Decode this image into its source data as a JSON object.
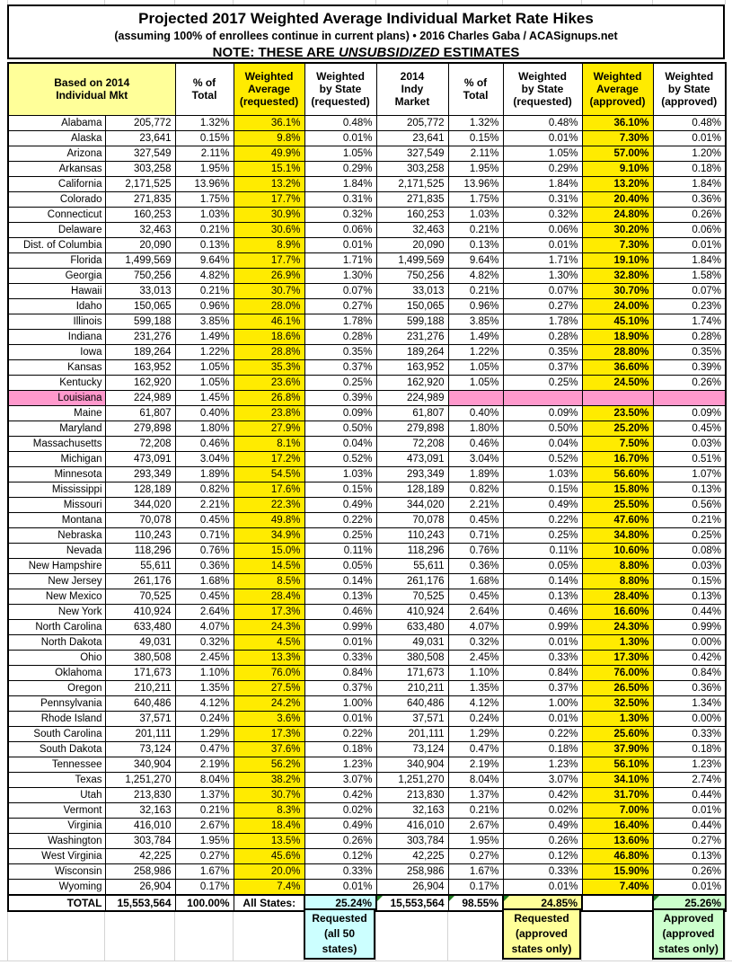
{
  "chart_data": {
    "type": "table",
    "title": "Projected 2017 Weighted Average Individual Market Rate Hikes",
    "subtitle": "(assuming 100% of enrollees continue in current plans) • 2016 Charles Gaba / ACASignups.net",
    "note_prefix": "NOTE: THESE ARE ",
    "note_italic": "UNSUBSIDIZED",
    "note_suffix": " ESTIMATES",
    "columns": [
      "Based on 2014\nIndividual Mkt",
      "% of\nTotal",
      "Weighted\nAverage\n(requested)",
      "Weighted\nby State\n(requested)",
      "2014\nIndy\nMarket",
      "% of\nTotal",
      "Weighted\nby State\n(requested)",
      "Weighted\nAverage\n(approved)",
      "Weighted\nby State\n(approved)"
    ],
    "highlighted_state": "Louisiana",
    "rows": [
      [
        "Alabama",
        "205,772",
        "1.32%",
        "36.1%",
        "0.48%",
        "205,772",
        "1.32%",
        "0.48%",
        "36.10%",
        "0.48%"
      ],
      [
        "Alaska",
        "23,641",
        "0.15%",
        "9.8%",
        "0.01%",
        "23,641",
        "0.15%",
        "0.01%",
        "7.30%",
        "0.01%"
      ],
      [
        "Arizona",
        "327,549",
        "2.11%",
        "49.9%",
        "1.05%",
        "327,549",
        "2.11%",
        "1.05%",
        "57.00%",
        "1.20%"
      ],
      [
        "Arkansas",
        "303,258",
        "1.95%",
        "15.1%",
        "0.29%",
        "303,258",
        "1.95%",
        "0.29%",
        "9.10%",
        "0.18%"
      ],
      [
        "California",
        "2,171,525",
        "13.96%",
        "13.2%",
        "1.84%",
        "2,171,525",
        "13.96%",
        "1.84%",
        "13.20%",
        "1.84%"
      ],
      [
        "Colorado",
        "271,835",
        "1.75%",
        "17.7%",
        "0.31%",
        "271,835",
        "1.75%",
        "0.31%",
        "20.40%",
        "0.36%"
      ],
      [
        "Connecticut",
        "160,253",
        "1.03%",
        "30.9%",
        "0.32%",
        "160,253",
        "1.03%",
        "0.32%",
        "24.80%",
        "0.26%"
      ],
      [
        "Delaware",
        "32,463",
        "0.21%",
        "30.6%",
        "0.06%",
        "32,463",
        "0.21%",
        "0.06%",
        "30.20%",
        "0.06%"
      ],
      [
        "Dist. of Columbia",
        "20,090",
        "0.13%",
        "8.9%",
        "0.01%",
        "20,090",
        "0.13%",
        "0.01%",
        "7.30%",
        "0.01%"
      ],
      [
        "Florida",
        "1,499,569",
        "9.64%",
        "17.7%",
        "1.71%",
        "1,499,569",
        "9.64%",
        "1.71%",
        "19.10%",
        "1.84%"
      ],
      [
        "Georgia",
        "750,256",
        "4.82%",
        "26.9%",
        "1.30%",
        "750,256",
        "4.82%",
        "1.30%",
        "32.80%",
        "1.58%"
      ],
      [
        "Hawaii",
        "33,013",
        "0.21%",
        "30.7%",
        "0.07%",
        "33,013",
        "0.21%",
        "0.07%",
        "30.70%",
        "0.07%"
      ],
      [
        "Idaho",
        "150,065",
        "0.96%",
        "28.0%",
        "0.27%",
        "150,065",
        "0.96%",
        "0.27%",
        "24.00%",
        "0.23%"
      ],
      [
        "Illinois",
        "599,188",
        "3.85%",
        "46.1%",
        "1.78%",
        "599,188",
        "3.85%",
        "1.78%",
        "45.10%",
        "1.74%"
      ],
      [
        "Indiana",
        "231,276",
        "1.49%",
        "18.6%",
        "0.28%",
        "231,276",
        "1.49%",
        "0.28%",
        "18.90%",
        "0.28%"
      ],
      [
        "Iowa",
        "189,264",
        "1.22%",
        "28.8%",
        "0.35%",
        "189,264",
        "1.22%",
        "0.35%",
        "28.80%",
        "0.35%"
      ],
      [
        "Kansas",
        "163,952",
        "1.05%",
        "35.3%",
        "0.37%",
        "163,952",
        "1.05%",
        "0.37%",
        "36.60%",
        "0.39%"
      ],
      [
        "Kentucky",
        "162,920",
        "1.05%",
        "23.6%",
        "0.25%",
        "162,920",
        "1.05%",
        "0.25%",
        "24.50%",
        "0.26%"
      ],
      [
        "Louisiana",
        "224,989",
        "1.45%",
        "26.8%",
        "0.39%",
        "224,989",
        "",
        "",
        "",
        ""
      ],
      [
        "Maine",
        "61,807",
        "0.40%",
        "23.8%",
        "0.09%",
        "61,807",
        "0.40%",
        "0.09%",
        "23.50%",
        "0.09%"
      ],
      [
        "Maryland",
        "279,898",
        "1.80%",
        "27.9%",
        "0.50%",
        "279,898",
        "1.80%",
        "0.50%",
        "25.20%",
        "0.45%"
      ],
      [
        "Massachusetts",
        "72,208",
        "0.46%",
        "8.1%",
        "0.04%",
        "72,208",
        "0.46%",
        "0.04%",
        "7.50%",
        "0.03%"
      ],
      [
        "Michigan",
        "473,091",
        "3.04%",
        "17.2%",
        "0.52%",
        "473,091",
        "3.04%",
        "0.52%",
        "16.70%",
        "0.51%"
      ],
      [
        "Minnesota",
        "293,349",
        "1.89%",
        "54.5%",
        "1.03%",
        "293,349",
        "1.89%",
        "1.03%",
        "56.60%",
        "1.07%"
      ],
      [
        "Mississippi",
        "128,189",
        "0.82%",
        "17.6%",
        "0.15%",
        "128,189",
        "0.82%",
        "0.15%",
        "15.80%",
        "0.13%"
      ],
      [
        "Missouri",
        "344,020",
        "2.21%",
        "22.3%",
        "0.49%",
        "344,020",
        "2.21%",
        "0.49%",
        "25.50%",
        "0.56%"
      ],
      [
        "Montana",
        "70,078",
        "0.45%",
        "49.8%",
        "0.22%",
        "70,078",
        "0.45%",
        "0.22%",
        "47.60%",
        "0.21%"
      ],
      [
        "Nebraska",
        "110,243",
        "0.71%",
        "34.9%",
        "0.25%",
        "110,243",
        "0.71%",
        "0.25%",
        "34.80%",
        "0.25%"
      ],
      [
        "Nevada",
        "118,296",
        "0.76%",
        "15.0%",
        "0.11%",
        "118,296",
        "0.76%",
        "0.11%",
        "10.60%",
        "0.08%"
      ],
      [
        "New Hampshire",
        "55,611",
        "0.36%",
        "14.5%",
        "0.05%",
        "55,611",
        "0.36%",
        "0.05%",
        "8.80%",
        "0.03%"
      ],
      [
        "New Jersey",
        "261,176",
        "1.68%",
        "8.5%",
        "0.14%",
        "261,176",
        "1.68%",
        "0.14%",
        "8.80%",
        "0.15%"
      ],
      [
        "New Mexico",
        "70,525",
        "0.45%",
        "28.4%",
        "0.13%",
        "70,525",
        "0.45%",
        "0.13%",
        "28.40%",
        "0.13%"
      ],
      [
        "New York",
        "410,924",
        "2.64%",
        "17.3%",
        "0.46%",
        "410,924",
        "2.64%",
        "0.46%",
        "16.60%",
        "0.44%"
      ],
      [
        "North Carolina",
        "633,480",
        "4.07%",
        "24.3%",
        "0.99%",
        "633,480",
        "4.07%",
        "0.99%",
        "24.30%",
        "0.99%"
      ],
      [
        "North Dakota",
        "49,031",
        "0.32%",
        "4.5%",
        "0.01%",
        "49,031",
        "0.32%",
        "0.01%",
        "1.30%",
        "0.00%"
      ],
      [
        "Ohio",
        "380,508",
        "2.45%",
        "13.3%",
        "0.33%",
        "380,508",
        "2.45%",
        "0.33%",
        "17.30%",
        "0.42%"
      ],
      [
        "Oklahoma",
        "171,673",
        "1.10%",
        "76.0%",
        "0.84%",
        "171,673",
        "1.10%",
        "0.84%",
        "76.00%",
        "0.84%"
      ],
      [
        "Oregon",
        "210,211",
        "1.35%",
        "27.5%",
        "0.37%",
        "210,211",
        "1.35%",
        "0.37%",
        "26.50%",
        "0.36%"
      ],
      [
        "Pennsylvania",
        "640,486",
        "4.12%",
        "24.2%",
        "1.00%",
        "640,486",
        "4.12%",
        "1.00%",
        "32.50%",
        "1.34%"
      ],
      [
        "Rhode Island",
        "37,571",
        "0.24%",
        "3.6%",
        "0.01%",
        "37,571",
        "0.24%",
        "0.01%",
        "1.30%",
        "0.00%"
      ],
      [
        "South Carolina",
        "201,111",
        "1.29%",
        "17.3%",
        "0.22%",
        "201,111",
        "1.29%",
        "0.22%",
        "25.60%",
        "0.33%"
      ],
      [
        "South Dakota",
        "73,124",
        "0.47%",
        "37.6%",
        "0.18%",
        "73,124",
        "0.47%",
        "0.18%",
        "37.90%",
        "0.18%"
      ],
      [
        "Tennessee",
        "340,904",
        "2.19%",
        "56.2%",
        "1.23%",
        "340,904",
        "2.19%",
        "1.23%",
        "56.10%",
        "1.23%"
      ],
      [
        "Texas",
        "1,251,270",
        "8.04%",
        "38.2%",
        "3.07%",
        "1,251,270",
        "8.04%",
        "3.07%",
        "34.10%",
        "2.74%"
      ],
      [
        "Utah",
        "213,830",
        "1.37%",
        "30.7%",
        "0.42%",
        "213,830",
        "1.37%",
        "0.42%",
        "31.70%",
        "0.44%"
      ],
      [
        "Vermont",
        "32,163",
        "0.21%",
        "8.3%",
        "0.02%",
        "32,163",
        "0.21%",
        "0.02%",
        "7.00%",
        "0.01%"
      ],
      [
        "Virginia",
        "416,010",
        "2.67%",
        "18.4%",
        "0.49%",
        "416,010",
        "2.67%",
        "0.49%",
        "16.40%",
        "0.44%"
      ],
      [
        "Washington",
        "303,784",
        "1.95%",
        "13.5%",
        "0.26%",
        "303,784",
        "1.95%",
        "0.26%",
        "13.60%",
        "0.27%"
      ],
      [
        "West Virginia",
        "42,225",
        "0.27%",
        "45.6%",
        "0.12%",
        "42,225",
        "0.27%",
        "0.12%",
        "46.80%",
        "0.13%"
      ],
      [
        "Wisconsin",
        "258,986",
        "1.67%",
        "20.0%",
        "0.33%",
        "258,986",
        "1.67%",
        "0.33%",
        "15.90%",
        "0.26%"
      ],
      [
        "Wyoming",
        "26,904",
        "0.17%",
        "7.4%",
        "0.01%",
        "26,904",
        "0.17%",
        "0.01%",
        "7.40%",
        "0.01%"
      ]
    ],
    "total": [
      "TOTAL",
      "15,553,564",
      "100.00%",
      "All States:",
      "25.24%",
      "15,553,564",
      "98.55%",
      "24.85%",
      "",
      "25.26%"
    ],
    "footnotes": {
      "requested_all": "Requested\n(all 50\nstates)",
      "requested_approved": "Requested\n(approved\nstates only)",
      "approved_approved": "Approved\n(approved\nstates only)"
    },
    "colors": {
      "highlight_yellow": "#FFEB00",
      "header_light_yellow": "#FFFF99",
      "louisiana_pink": "#FF99CC",
      "total_cyan": "#CCFFFF",
      "total_light_yellow": "#FFFF99",
      "total_light_green": "#CCFFCC"
    }
  }
}
